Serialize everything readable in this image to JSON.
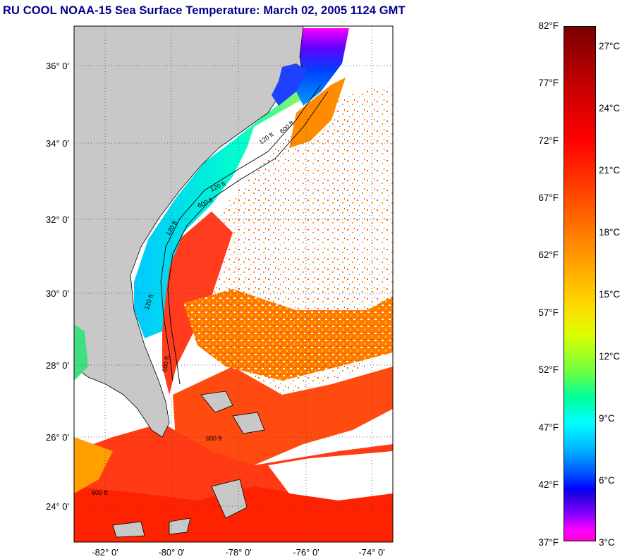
{
  "title": "RU COOL  NOAA-15  Sea Surface Temperature:  March 02, 2005 1124 GMT",
  "map": {
    "lat_labels": [
      "36° 0'",
      "34° 0'",
      "32° 0'",
      "30° 0'",
      "28° 0'",
      "26° 0'",
      "24° 0'"
    ],
    "lon_labels": [
      "-82° 0'",
      "-80° 0'",
      "-78° 0'",
      "-76° 0'",
      "-74° 0'"
    ],
    "contour_labels": [
      "120 ft",
      "600 ft",
      "120 ft",
      "600 ft",
      "120 ft",
      "600 ft",
      "600 ft",
      "120 ft",
      "600 ft"
    ],
    "colors": {
      "land": "#c8c8c8",
      "cloud": "#ffffff",
      "warm": "#ff3a00",
      "cool": "#00ffff"
    }
  },
  "colorbar": {
    "fahrenheit": [
      "82°F",
      "77°F",
      "72°F",
      "67°F",
      "62°F",
      "57°F",
      "52°F",
      "47°F",
      "42°F",
      "37°F"
    ],
    "celsius": [
      "27°C",
      "24°C",
      "21°C",
      "18°C",
      "15°C",
      "12°C",
      "9°C",
      "6°C",
      "3°C"
    ]
  }
}
